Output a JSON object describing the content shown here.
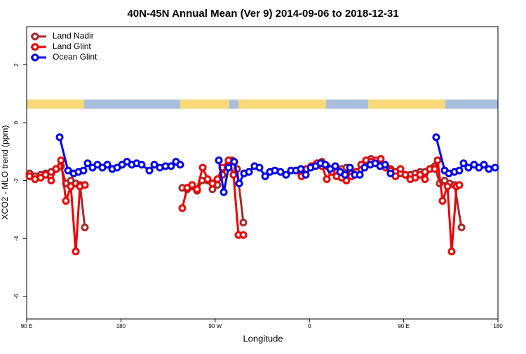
{
  "chart_data": {
    "type": "line",
    "title": "40N-45N Annual Mean (Ver 9)   2014-09-06 to 2018-12-31",
    "x_label": "Longitude",
    "y_label": "XCO2 - MLO trend (ppm)",
    "xlim": [
      90,
      540
    ],
    "ylim": [
      -6.78,
      3.32
    ],
    "xticks": [
      {
        "value": 90,
        "label": "90 E"
      },
      180,
      {
        "value": 270,
        "label": "90 W"
      },
      {
        "value": 360,
        "label": "0"
      },
      {
        "value": 450,
        "label": "90 E"
      },
      {
        "value": 540,
        "label": "180"
      }
    ],
    "yticks": [
      -6,
      -4,
      -2,
      0,
      2
    ],
    "legend": "top-left",
    "series": [
      {
        "name": "Land Nadir",
        "color": "#a52a2a",
        "x": [
          92.7,
          98.0,
          103.4,
          108.1,
          113.4,
          118.1,
          122.8,
          127.5,
          132.2,
          136.9,
          140.9,
          145.6,
          null,
          238.6,
          243.3,
          248.0,
          252.7,
          257.4,
          262.8,
          267.4,
          272.1,
          276.8,
          281.5,
          286.2,
          290.9,
          296.9,
          null,
          352.5,
          357.2,
          361.9,
          367.2,
          371.9,
          376.6,
          381.3,
          386.0,
          390.7,
          395.3,
          400.0,
          404.7,
          409.4,
          414.1,
          418.8,
          423.5,
          428.1,
          432.8,
          437.5,
          442.2,
          446.9,
          451.6,
          456.3,
          461.0,
          465.6,
          470.3,
          475.0,
          479.7,
          484.4,
          489.1,
          493.8,
          498.5,
          505.2
        ],
        "values": [
          -1.75,
          -1.85,
          -1.8,
          -1.75,
          -1.7,
          -1.6,
          -1.5,
          -2.1,
          -2.0,
          -2.1,
          -2.15,
          -3.62,
          null,
          -2.25,
          -2.3,
          -2.2,
          -2.35,
          -2.0,
          -2.0,
          -2.3,
          -2.15,
          -1.8,
          -1.5,
          -1.3,
          -1.6,
          -3.45,
          null,
          -1.8,
          -1.6,
          -1.5,
          -1.4,
          -1.35,
          -1.5,
          -1.65,
          -1.7,
          -1.6,
          -1.55,
          -1.75,
          -1.7,
          -1.45,
          -1.35,
          -1.25,
          -1.35,
          -1.45,
          -1.5,
          -1.6,
          -1.7,
          -1.75,
          -1.8,
          -1.8,
          -1.75,
          -1.7,
          -1.7,
          -1.6,
          -1.5,
          -2.1,
          -2.0,
          -2.1,
          -2.15,
          -3.62
        ]
      },
      {
        "name": "Land Glint",
        "color": "#ee0000",
        "x": [
          92.7,
          98.0,
          103.4,
          108.1,
          113.4,
          118.1,
          122.8,
          127.5,
          132.2,
          136.9,
          140.9,
          145.6,
          null,
          238.6,
          243.3,
          248.0,
          252.7,
          258.1,
          262.8,
          267.4,
          272.1,
          276.8,
          282.8,
          287.5,
          292.2,
          296.9,
          null,
          352.5,
          357.2,
          361.9,
          367.2,
          371.9,
          376.6,
          381.3,
          386.0,
          390.7,
          395.3,
          400.0,
          404.7,
          409.4,
          414.1,
          418.8,
          423.5,
          428.1,
          432.8,
          437.5,
          442.2,
          446.9,
          451.6,
          456.3,
          461.0,
          465.6,
          470.3,
          475.0,
          479.7,
          482.4,
          487.1,
          491.8,
          495.8,
          500.5,
          503.1
        ],
        "values": [
          -1.85,
          -1.95,
          -1.9,
          -1.8,
          -2.0,
          -1.6,
          -1.3,
          -2.7,
          -2.2,
          -4.45,
          -2.2,
          -2.15,
          null,
          -2.95,
          -2.25,
          -2.15,
          -2.3,
          -1.55,
          -1.95,
          -2.1,
          -1.95,
          -1.55,
          -1.3,
          -1.8,
          -3.88,
          -3.88,
          null,
          -1.85,
          -1.6,
          -1.5,
          -1.4,
          -1.5,
          -1.95,
          -1.7,
          -1.85,
          -1.9,
          -2.0,
          -1.85,
          -1.7,
          -1.45,
          -1.3,
          -1.35,
          -1.3,
          -1.25,
          -1.55,
          -1.65,
          -1.85,
          -1.6,
          -1.8,
          -1.95,
          -1.9,
          -1.8,
          -1.95,
          -1.6,
          -1.6,
          -1.3,
          -2.7,
          -2.2,
          -4.45,
          -2.2,
          -2.15
        ]
      },
      {
        "name": "Ocean Glint",
        "color": "#0000ee",
        "x": [
          121.5,
          129.5,
          134.9,
          139.5,
          144.2,
          148.3,
          152.9,
          157.6,
          162.3,
          167.0,
          171.7,
          176.4,
          181.1,
          185.8,
          190.4,
          195.1,
          199.8,
          207.2,
          211.9,
          217.2,
          222.6,
          227.9,
          232.6,
          236.6,
          null,
          273.5,
          278.2,
          282.8,
          288.2,
          292.9,
          297.6,
          302.3,
          307.6,
          312.3,
          317.7,
          322.3,
          327.0,
          332.4,
          337.7,
          342.4,
          347.1,
          351.8,
          356.5,
          361.2,
          365.9,
          370.6,
          375.2,
          379.9,
          384.6,
          389.3,
          394.0,
          398.7,
          403.4,
          408.1,
          412.7,
          418.1,
          422.8,
          427.5,
          432.2,
          437.5,
          null,
          481.0,
          489.1,
          493.1,
          498.5,
          503.1,
          507.2,
          511.8,
          517.2,
          521.9,
          526.6,
          531.3,
          537.3
        ],
        "values": [
          -0.5,
          -1.65,
          -1.75,
          -1.7,
          -1.65,
          -1.4,
          -1.55,
          -1.45,
          -1.55,
          -1.45,
          -1.6,
          -1.55,
          -1.45,
          -1.35,
          -1.45,
          -1.4,
          -1.45,
          -1.65,
          -1.45,
          -1.55,
          -1.5,
          -1.5,
          -1.35,
          -1.45,
          null,
          -1.3,
          -2.4,
          -1.55,
          -1.35,
          -2.1,
          -1.75,
          -1.7,
          -1.5,
          -1.55,
          -1.85,
          -1.7,
          -1.65,
          -1.7,
          -1.8,
          -1.65,
          -1.65,
          -1.6,
          -1.8,
          -1.55,
          -1.5,
          -1.4,
          -1.45,
          -1.6,
          -1.5,
          -1.7,
          -1.8,
          -1.55,
          -1.8,
          -1.8,
          -1.55,
          -1.45,
          -1.4,
          -1.5,
          -1.45,
          -1.75,
          null,
          -0.5,
          -1.65,
          -1.75,
          -1.7,
          -1.65,
          -1.4,
          -1.55,
          -1.45,
          -1.55,
          -1.45,
          -1.6,
          -1.55
        ]
      }
    ]
  }
}
